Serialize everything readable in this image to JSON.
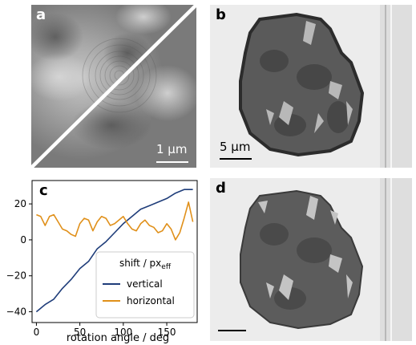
{
  "panels": {
    "a": {
      "label": "a",
      "scalebar": "1 µm"
    },
    "b": {
      "label": "b",
      "scalebar": "5 µm"
    },
    "c": {
      "label": "c"
    },
    "d": {
      "label": "d"
    }
  },
  "chart_data": {
    "type": "line",
    "xlabel": "rotation angle / deg",
    "ylabel": "",
    "xlim": [
      -5,
      185
    ],
    "ylim": [
      -46,
      33
    ],
    "xticks": [
      0,
      50,
      100,
      150
    ],
    "yticks": [
      -40,
      -20,
      0,
      20
    ],
    "grid": false,
    "legend": {
      "title_main": "shift / px",
      "title_sub": "eff",
      "placement": "bottom-right"
    },
    "series": [
      {
        "name": "vertical",
        "color": "#1f3d7a",
        "x": [
          0,
          10,
          20,
          30,
          40,
          50,
          60,
          70,
          80,
          90,
          100,
          110,
          120,
          130,
          140,
          150,
          160,
          170,
          180
        ],
        "y": [
          -40,
          -36,
          -33,
          -27,
          -22,
          -16,
          -12,
          -5,
          -1,
          4,
          9,
          13,
          17,
          19,
          21,
          23,
          26,
          28,
          28
        ]
      },
      {
        "name": "horizontal",
        "color": "#e0901a",
        "x": [
          0,
          5,
          10,
          15,
          20,
          25,
          30,
          35,
          40,
          45,
          50,
          55,
          60,
          65,
          70,
          75,
          80,
          85,
          90,
          95,
          100,
          105,
          110,
          115,
          120,
          125,
          130,
          135,
          140,
          145,
          150,
          155,
          160,
          165,
          170,
          175,
          180
        ],
        "y": [
          14,
          13,
          8,
          13,
          14,
          10,
          6,
          5,
          3,
          2,
          9,
          12,
          11,
          5,
          10,
          13,
          12,
          8,
          9,
          11,
          13,
          9,
          6,
          5,
          9,
          11,
          8,
          7,
          4,
          5,
          9,
          6,
          0,
          4,
          12,
          21,
          10
        ]
      }
    ]
  }
}
